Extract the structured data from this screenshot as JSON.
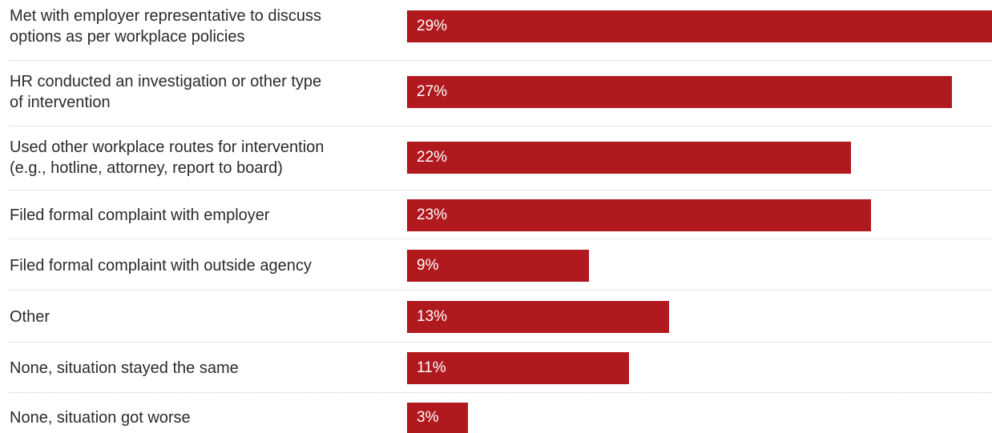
{
  "colors": {
    "bar": "#b01a1f",
    "label_text": "#2b2b2b",
    "value_text": "#ffffff",
    "separator": "#c8c8c8"
  },
  "chart_data": {
    "type": "bar",
    "orientation": "horizontal",
    "categories": [
      [
        "Met with employer representative to discuss",
        "options as per workplace policies"
      ],
      [
        "HR conducted an investigation or other type",
        "of intervention"
      ],
      [
        "Used other workplace routes for intervention",
        "(e.g., hotline, attorney, report to board)"
      ],
      [
        "Filed formal complaint with employer"
      ],
      [
        "Filed formal complaint with outside agency"
      ],
      [
        "Other"
      ],
      [
        "None, situation stayed the same"
      ],
      [
        "None, situation got worse"
      ]
    ],
    "values": [
      29,
      27,
      22,
      23,
      9,
      13,
      11,
      3
    ],
    "value_labels": [
      "29%",
      "27%",
      "22%",
      "23%",
      "9%",
      "13%",
      "11%",
      "3%"
    ],
    "xlim": [
      0,
      29
    ],
    "grid": false
  }
}
